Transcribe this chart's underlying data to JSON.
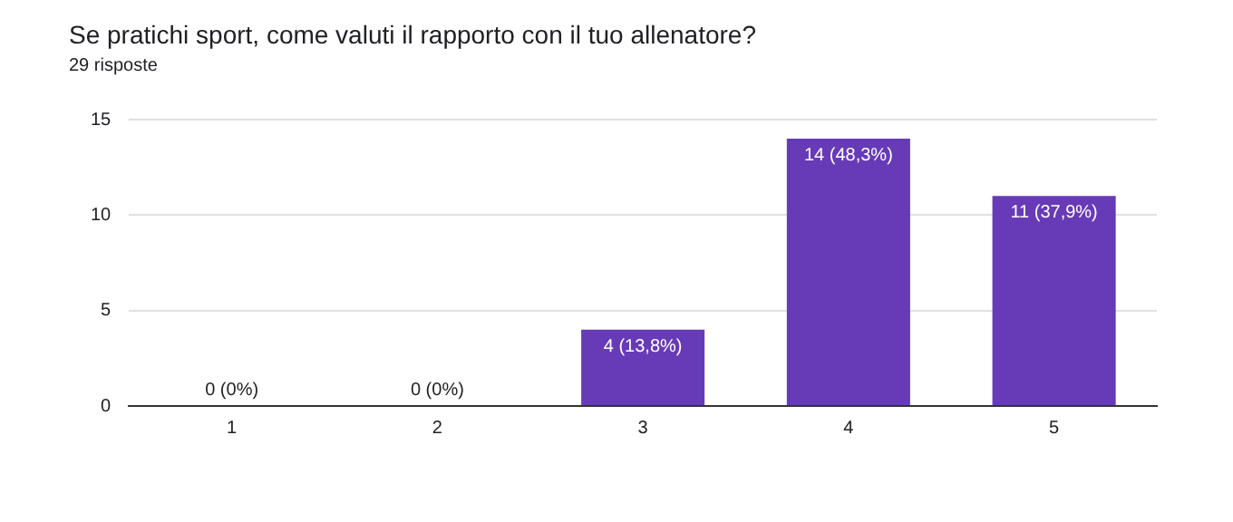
{
  "chart_data": {
    "type": "bar",
    "title": "Se pratichi sport, come valuti il rapporto con il tuo allenatore?",
    "subtitle": "29 risposte",
    "categories": [
      "1",
      "2",
      "3",
      "4",
      "5"
    ],
    "values": [
      0,
      0,
      4,
      14,
      11
    ],
    "value_labels": [
      "0 (0%)",
      "0 (0%)",
      "4 (13,8%)",
      "14 (48,3%)",
      "11 (37,9%)"
    ],
    "color": "#673ab7",
    "ylim": [
      0,
      15
    ],
    "yticks": [
      0,
      5,
      10,
      15
    ],
    "grid": "y",
    "legend": false
  }
}
